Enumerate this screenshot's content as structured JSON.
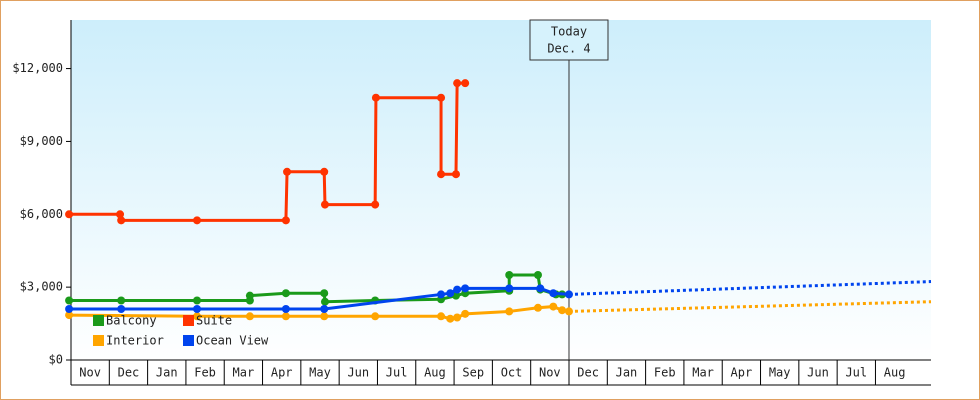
{
  "chart_data": {
    "type": "step-line",
    "ylim": [
      0,
      14000
    ],
    "yticks": [
      {
        "value": 0,
        "label": "$0"
      },
      {
        "value": 3000,
        "label": "$3,000"
      },
      {
        "value": 6000,
        "label": "$6,000"
      },
      {
        "value": 9000,
        "label": "$9,000"
      },
      {
        "value": 12000,
        "label": "$12,000"
      }
    ],
    "xlim": [
      0,
      22.45
    ],
    "categories": [
      "Nov",
      "Dec",
      "Jan",
      "Feb",
      "Mar",
      "Apr",
      "May",
      "Jun",
      "Jul",
      "Aug",
      "Sep",
      "Oct",
      "Nov",
      "Dec",
      "Jan",
      "Feb",
      "Mar",
      "Apr",
      "May",
      "Jun",
      "Jul",
      "Aug"
    ],
    "today": {
      "x": 13.0,
      "label": "Today",
      "date": "Dec. 4"
    },
    "legend": "bottom-left",
    "series": [
      {
        "name": "Balcony",
        "color": "#1a9a1a",
        "x": [
          -0.05,
          1.31,
          3.29,
          4.67,
          4.67,
          5.61,
          6.61,
          6.63,
          7.94,
          9.66,
          10.05,
          10.29,
          11.44,
          11.44,
          12.19,
          12.25,
          12.66,
          12.82
        ],
        "values": [
          2450,
          2450,
          2450,
          2450,
          2650,
          2750,
          2750,
          2400,
          2450,
          2500,
          2650,
          2750,
          2850,
          3500,
          3500,
          2900,
          2700,
          2700
        ]
      },
      {
        "name": "Suite",
        "color": "#ff3300",
        "x": [
          -0.05,
          1.28,
          1.31,
          3.29,
          5.61,
          5.64,
          6.61,
          6.63,
          7.94,
          7.96,
          9.66,
          9.66,
          10.05,
          10.08,
          10.29
        ],
        "values": [
          6000,
          6000,
          5750,
          5750,
          5750,
          7750,
          7750,
          6400,
          6400,
          10800,
          10800,
          7650,
          7650,
          11400,
          11400
        ]
      },
      {
        "name": "Interior",
        "color": "#ffa500",
        "x": [
          -0.05,
          3.29,
          4.67,
          5.61,
          6.61,
          7.94,
          9.66,
          9.9,
          10.08,
          10.29,
          11.44,
          12.19,
          12.59,
          12.82,
          13.0
        ],
        "values": [
          1850,
          1800,
          1800,
          1800,
          1800,
          1800,
          1800,
          1700,
          1750,
          1900,
          2000,
          2150,
          2200,
          2050,
          2000
        ],
        "projection": {
          "x": [
            13.0,
            22.45
          ],
          "values": [
            2000,
            2400
          ]
        }
      },
      {
        "name": "Ocean View",
        "color": "#0044ee",
        "x": [
          -0.05,
          1.31,
          3.29,
          5.61,
          6.61,
          9.66,
          9.9,
          10.08,
          10.29,
          11.44,
          12.25,
          12.59,
          13.0
        ],
        "values": [
          2100,
          2100,
          2100,
          2100,
          2100,
          2700,
          2750,
          2900,
          2950,
          2950,
          2950,
          2750,
          2700
        ],
        "projection": {
          "x": [
            13.0,
            22.45
          ],
          "values": [
            2700,
            3230
          ]
        }
      }
    ]
  }
}
